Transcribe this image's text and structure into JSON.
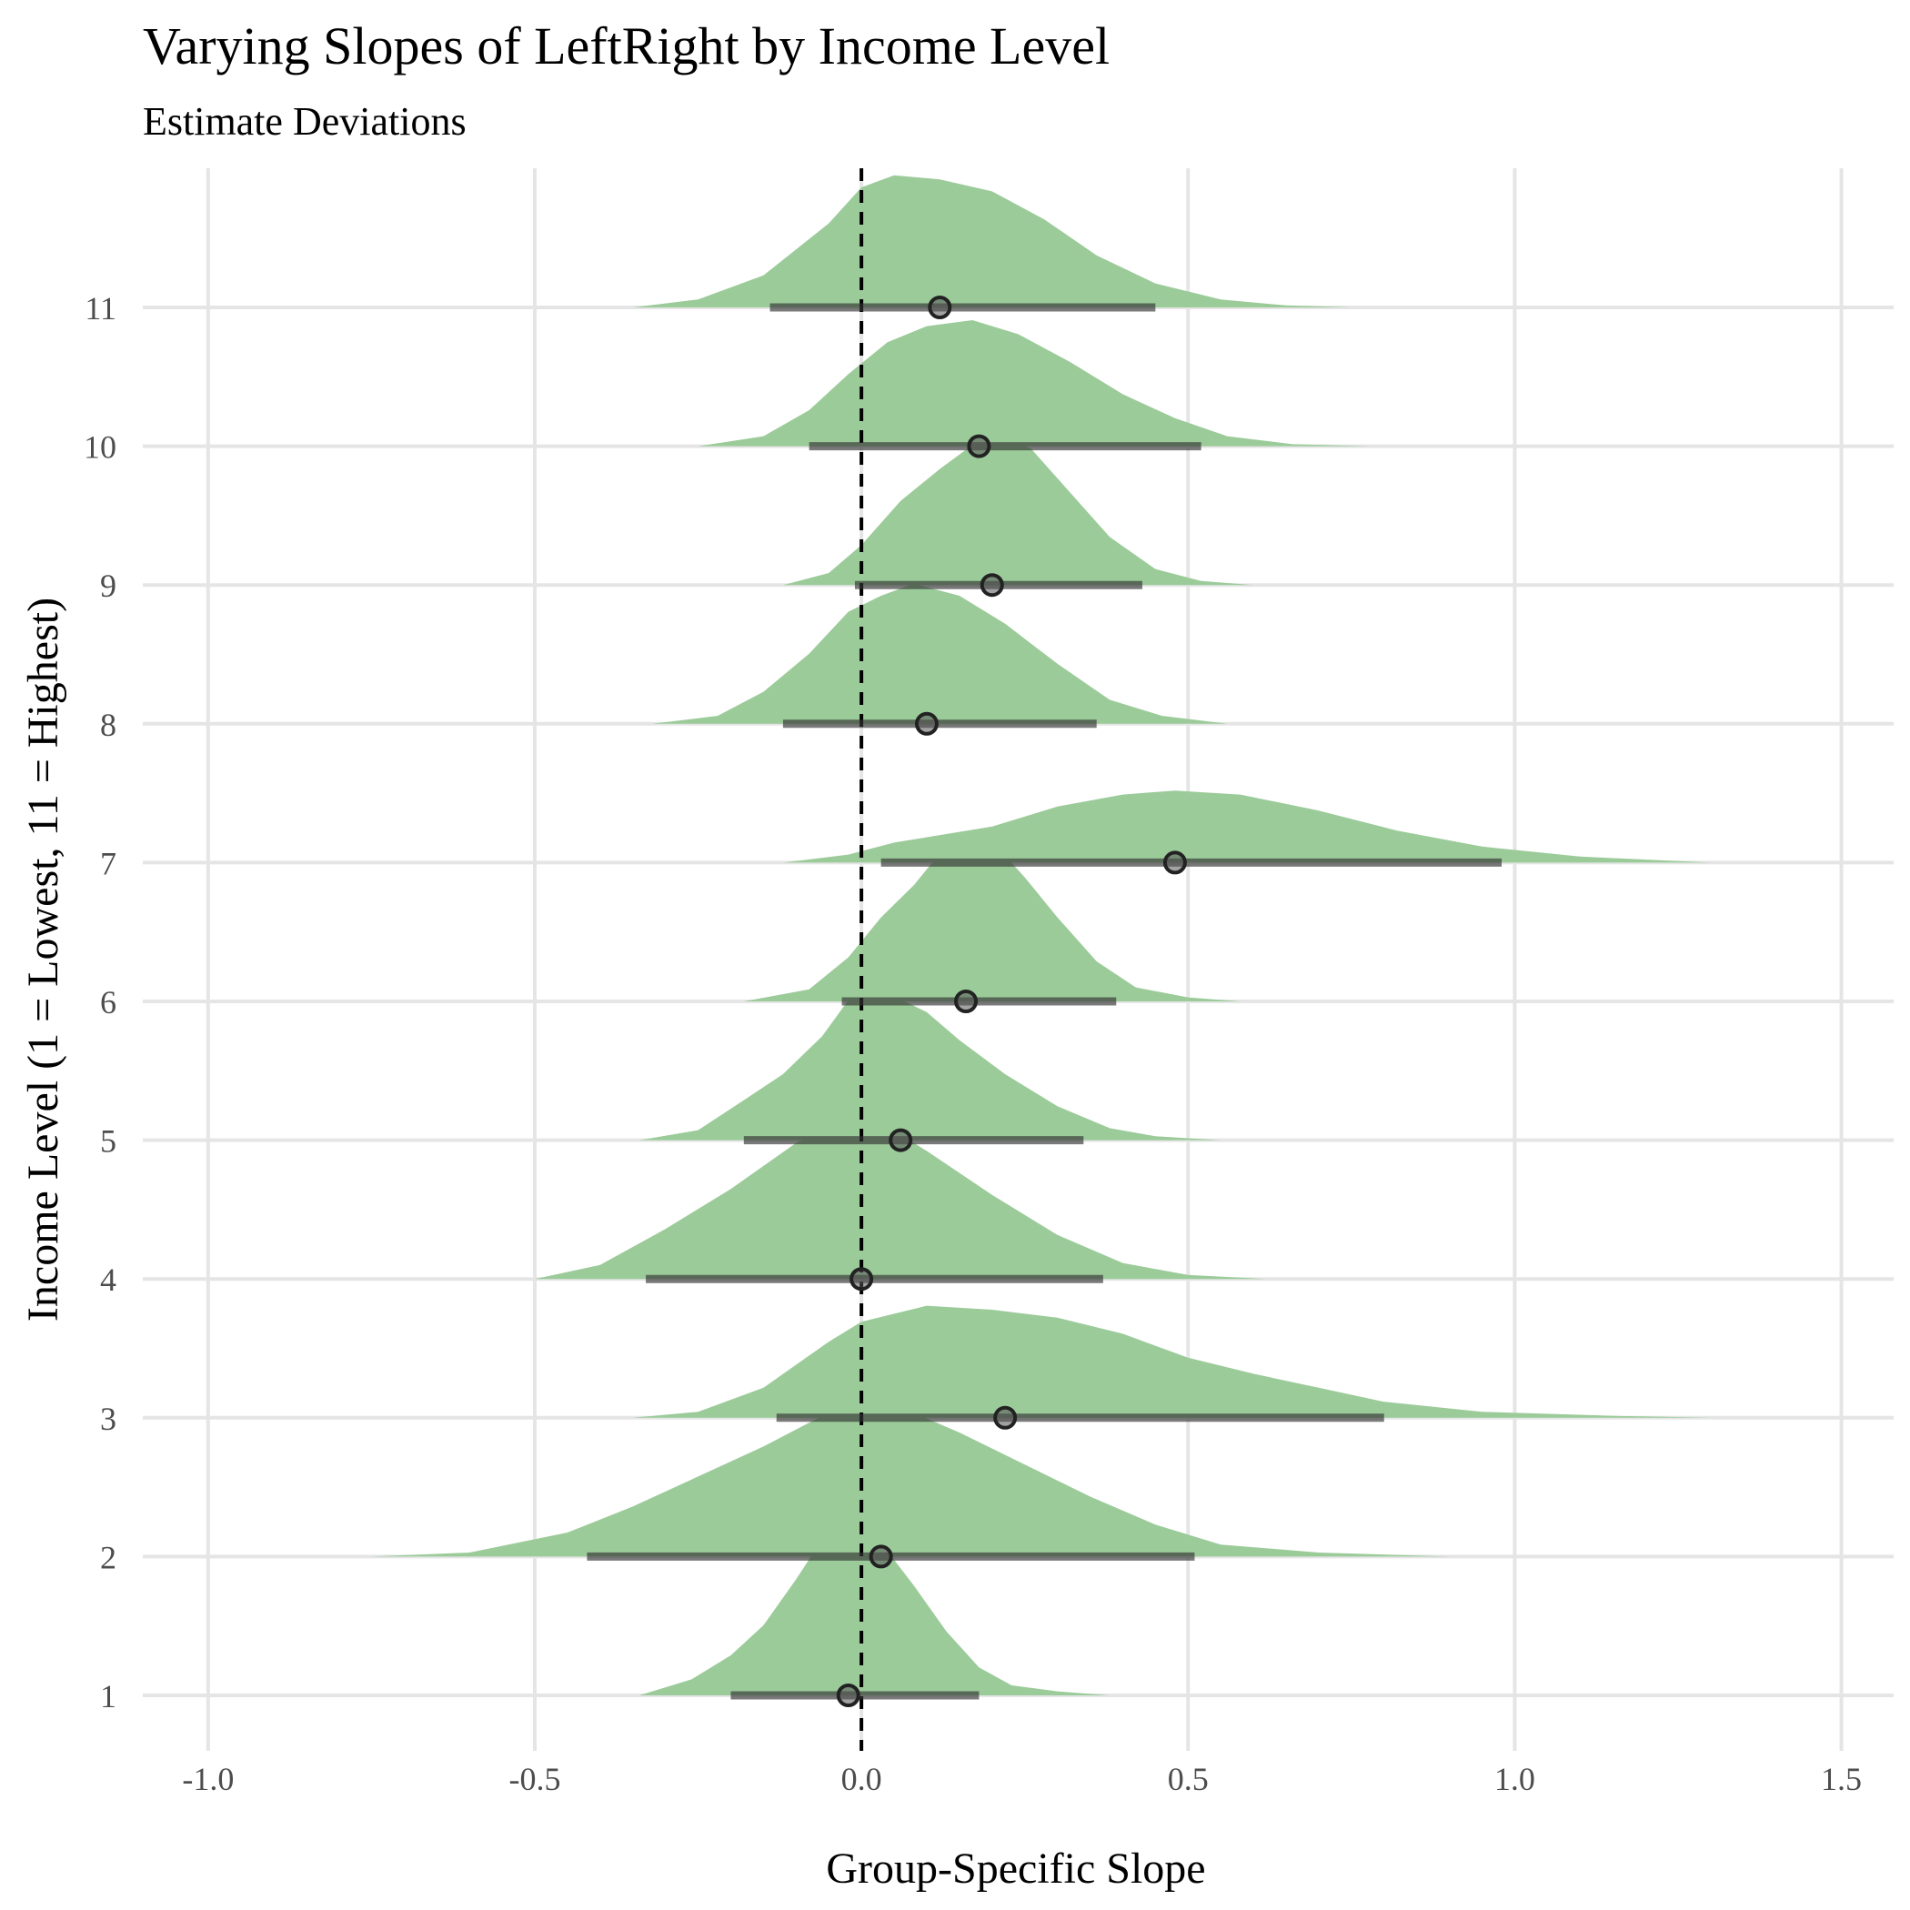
{
  "chart_data": {
    "type": "ridgeline",
    "title": "Varying Slopes of LeftRight by Income Level",
    "subtitle": "Estimate Deviations",
    "xlabel": "Group-Specific Slope",
    "ylabel": "Income Level (1 = Lowest, 11 = Highest)",
    "xlim": [
      -1.1,
      1.58
    ],
    "x_ticks": [
      -1.0,
      -0.5,
      0.0,
      0.5,
      1.0,
      1.5
    ],
    "x_tick_labels": [
      "-1.0",
      "-0.5",
      "0.0",
      "0.5",
      "1.0",
      "1.5"
    ],
    "categories": [
      "1",
      "2",
      "3",
      "4",
      "5",
      "6",
      "7",
      "8",
      "9",
      "10",
      "11"
    ],
    "reference_line": 0,
    "grid": true,
    "fill_color": "#9ccb9a",
    "interval_color": "#333333",
    "series": [
      {
        "name": "1",
        "estimate": -0.02,
        "lower": -0.2,
        "upper": 0.18,
        "density": [
          [
            -0.34,
            0
          ],
          [
            -0.26,
            0.08
          ],
          [
            -0.2,
            0.2
          ],
          [
            -0.15,
            0.35
          ],
          [
            -0.1,
            0.58
          ],
          [
            -0.06,
            0.78
          ],
          [
            -0.02,
            0.88
          ],
          [
            0.01,
            0.85
          ],
          [
            0.04,
            0.72
          ],
          [
            0.08,
            0.55
          ],
          [
            0.13,
            0.32
          ],
          [
            0.18,
            0.14
          ],
          [
            0.23,
            0.05
          ],
          [
            0.3,
            0.02
          ],
          [
            0.38,
            0
          ]
        ]
      },
      {
        "name": "2",
        "estimate": 0.03,
        "lower": -0.42,
        "upper": 0.51,
        "density": [
          [
            -0.75,
            0
          ],
          [
            -0.6,
            0.02
          ],
          [
            -0.45,
            0.12
          ],
          [
            -0.35,
            0.25
          ],
          [
            -0.25,
            0.4
          ],
          [
            -0.15,
            0.55
          ],
          [
            -0.05,
            0.72
          ],
          [
            0.0,
            0.8
          ],
          [
            0.05,
            0.76
          ],
          [
            0.15,
            0.62
          ],
          [
            0.25,
            0.46
          ],
          [
            0.35,
            0.3
          ],
          [
            0.45,
            0.16
          ],
          [
            0.55,
            0.06
          ],
          [
            0.7,
            0.02
          ],
          [
            0.9,
            0
          ]
        ]
      },
      {
        "name": "3",
        "estimate": 0.22,
        "lower": -0.13,
        "upper": 0.8,
        "density": [
          [
            -0.35,
            0
          ],
          [
            -0.25,
            0.03
          ],
          [
            -0.15,
            0.15
          ],
          [
            -0.05,
            0.38
          ],
          [
            0.0,
            0.48
          ],
          [
            0.1,
            0.56
          ],
          [
            0.2,
            0.54
          ],
          [
            0.3,
            0.5
          ],
          [
            0.4,
            0.42
          ],
          [
            0.5,
            0.3
          ],
          [
            0.6,
            0.22
          ],
          [
            0.7,
            0.15
          ],
          [
            0.8,
            0.08
          ],
          [
            0.95,
            0.03
          ],
          [
            1.15,
            0.01
          ],
          [
            1.3,
            0
          ]
        ]
      },
      {
        "name": "4",
        "estimate": 0.0,
        "lower": -0.33,
        "upper": 0.37,
        "density": [
          [
            -0.5,
            0
          ],
          [
            -0.4,
            0.07
          ],
          [
            -0.3,
            0.25
          ],
          [
            -0.2,
            0.45
          ],
          [
            -0.1,
            0.68
          ],
          [
            -0.02,
            0.8
          ],
          [
            0.03,
            0.78
          ],
          [
            0.1,
            0.64
          ],
          [
            0.2,
            0.42
          ],
          [
            0.3,
            0.22
          ],
          [
            0.4,
            0.08
          ],
          [
            0.5,
            0.02
          ],
          [
            0.62,
            0
          ]
        ]
      },
      {
        "name": "5",
        "estimate": 0.06,
        "lower": -0.18,
        "upper": 0.34,
        "density": [
          [
            -0.34,
            0
          ],
          [
            -0.25,
            0.05
          ],
          [
            -0.18,
            0.2
          ],
          [
            -0.12,
            0.33
          ],
          [
            -0.06,
            0.52
          ],
          [
            -0.02,
            0.7
          ],
          [
            0.01,
            0.78
          ],
          [
            0.05,
            0.72
          ],
          [
            0.1,
            0.64
          ],
          [
            0.15,
            0.5
          ],
          [
            0.22,
            0.33
          ],
          [
            0.3,
            0.17
          ],
          [
            0.38,
            0.06
          ],
          [
            0.45,
            0.02
          ],
          [
            0.55,
            0
          ]
        ]
      },
      {
        "name": "6",
        "estimate": 0.16,
        "lower": -0.03,
        "upper": 0.39,
        "density": [
          [
            -0.18,
            0
          ],
          [
            -0.08,
            0.06
          ],
          [
            -0.02,
            0.22
          ],
          [
            0.03,
            0.42
          ],
          [
            0.08,
            0.58
          ],
          [
            0.12,
            0.74
          ],
          [
            0.15,
            0.84
          ],
          [
            0.2,
            0.8
          ],
          [
            0.25,
            0.62
          ],
          [
            0.3,
            0.42
          ],
          [
            0.36,
            0.2
          ],
          [
            0.42,
            0.07
          ],
          [
            0.5,
            0.02
          ],
          [
            0.58,
            0
          ]
        ]
      },
      {
        "name": "7",
        "estimate": 0.48,
        "lower": 0.03,
        "upper": 0.98,
        "density": [
          [
            -0.12,
            0
          ],
          [
            -0.02,
            0.04
          ],
          [
            0.05,
            0.1
          ],
          [
            0.2,
            0.18
          ],
          [
            0.3,
            0.28
          ],
          [
            0.4,
            0.34
          ],
          [
            0.48,
            0.36
          ],
          [
            0.58,
            0.34
          ],
          [
            0.7,
            0.26
          ],
          [
            0.82,
            0.16
          ],
          [
            0.95,
            0.08
          ],
          [
            1.1,
            0.03
          ],
          [
            1.3,
            0
          ]
        ]
      },
      {
        "name": "8",
        "estimate": 0.1,
        "lower": -0.12,
        "upper": 0.36,
        "density": [
          [
            -0.32,
            0
          ],
          [
            -0.22,
            0.04
          ],
          [
            -0.15,
            0.16
          ],
          [
            -0.08,
            0.35
          ],
          [
            -0.02,
            0.56
          ],
          [
            0.03,
            0.64
          ],
          [
            0.08,
            0.7
          ],
          [
            0.15,
            0.64
          ],
          [
            0.22,
            0.5
          ],
          [
            0.3,
            0.3
          ],
          [
            0.38,
            0.12
          ],
          [
            0.46,
            0.04
          ],
          [
            0.56,
            0
          ]
        ]
      },
      {
        "name": "9",
        "estimate": 0.2,
        "lower": -0.01,
        "upper": 0.43,
        "density": [
          [
            -0.12,
            0
          ],
          [
            -0.05,
            0.06
          ],
          [
            0.0,
            0.2
          ],
          [
            0.06,
            0.42
          ],
          [
            0.12,
            0.58
          ],
          [
            0.17,
            0.7
          ],
          [
            0.21,
            0.76
          ],
          [
            0.26,
            0.68
          ],
          [
            0.32,
            0.46
          ],
          [
            0.38,
            0.24
          ],
          [
            0.45,
            0.08
          ],
          [
            0.52,
            0.02
          ],
          [
            0.6,
            0
          ]
        ]
      },
      {
        "name": "10",
        "estimate": 0.18,
        "lower": -0.08,
        "upper": 0.52,
        "density": [
          [
            -0.25,
            0
          ],
          [
            -0.15,
            0.05
          ],
          [
            -0.08,
            0.18
          ],
          [
            -0.02,
            0.36
          ],
          [
            0.04,
            0.52
          ],
          [
            0.1,
            0.6
          ],
          [
            0.17,
            0.63
          ],
          [
            0.24,
            0.56
          ],
          [
            0.32,
            0.42
          ],
          [
            0.4,
            0.26
          ],
          [
            0.48,
            0.14
          ],
          [
            0.56,
            0.05
          ],
          [
            0.66,
            0.01
          ],
          [
            0.78,
            0
          ]
        ]
      },
      {
        "name": "11",
        "estimate": 0.12,
        "lower": -0.14,
        "upper": 0.45,
        "density": [
          [
            -0.35,
            0
          ],
          [
            -0.25,
            0.04
          ],
          [
            -0.15,
            0.16
          ],
          [
            -0.05,
            0.42
          ],
          [
            0.0,
            0.6
          ],
          [
            0.05,
            0.66
          ],
          [
            0.12,
            0.64
          ],
          [
            0.2,
            0.58
          ],
          [
            0.28,
            0.44
          ],
          [
            0.36,
            0.26
          ],
          [
            0.45,
            0.12
          ],
          [
            0.55,
            0.04
          ],
          [
            0.65,
            0.01
          ],
          [
            0.75,
            0
          ]
        ]
      }
    ]
  }
}
